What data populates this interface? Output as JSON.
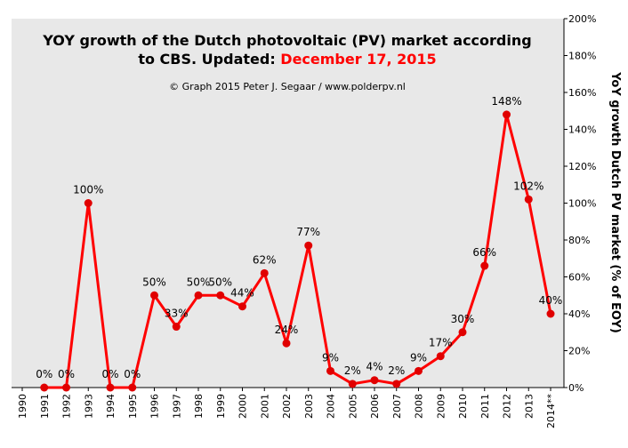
{
  "chart_data": {
    "type": "line",
    "title_part1": "YOY growth of the Dutch photovoltaic  (PV) market according",
    "title_part2": "to CBS. Updated: ",
    "title_date": "December 17, 2015",
    "credit": "© Graph 2015 Peter J. Segaar / www.polderpv.nl",
    "ylabel": "YoY growth  Dutch PV market  (% of EOY)",
    "xlabel": "",
    "categories": [
      "1990",
      "1991",
      "1992",
      "1993",
      "1994",
      "1995",
      "1996",
      "1997",
      "1998",
      "1999",
      "2000",
      "2001",
      "2002",
      "2003",
      "2004",
      "2005",
      "2006",
      "2007",
      "2008",
      "2009",
      "2010",
      "2011",
      "2012",
      "2013",
      "2014**"
    ],
    "series": [
      {
        "name": "",
        "values": [
          null,
          0,
          0,
          100,
          0,
          0,
          50,
          33,
          50,
          50,
          44,
          62,
          24,
          77,
          9,
          2,
          4,
          2,
          9,
          17,
          30,
          66,
          148,
          102,
          40
        ],
        "labels": [
          "",
          "0%",
          "0%",
          "100%",
          "0%",
          "0%",
          "50%",
          "33%",
          "50%",
          "50%",
          "44%",
          "62%",
          "24%",
          "77%",
          "9%",
          "2%",
          "4%",
          "2%",
          "9%",
          "17%",
          "30%",
          "66%",
          "148%",
          "102%",
          "40%"
        ]
      }
    ],
    "ylim": [
      0,
      200
    ],
    "yticks": [
      0,
      20,
      40,
      60,
      80,
      100,
      120,
      140,
      160,
      180,
      200
    ],
    "ytick_labels": [
      "0%",
      "20%",
      "40%",
      "60%",
      "80%",
      "100%",
      "120%",
      "140%",
      "160%",
      "180%",
      "200%"
    ],
    "y_axis_position": "right",
    "grid": false,
    "colors": {
      "plot_background": "#e8e8e8",
      "page_background": "#ffffff",
      "line": "#ff0000",
      "marker": "#e00000",
      "title": "#000000",
      "title_date": "#ff0000"
    }
  }
}
